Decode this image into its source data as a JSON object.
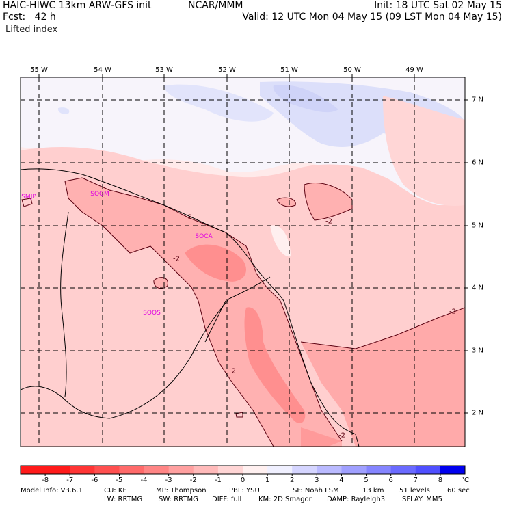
{
  "header": {
    "model_title": "HAIC-HIWC 13km ARW-GFS init",
    "agency": "NCAR/MMM",
    "init": "Init: 18 UTC Sat 02 May 15",
    "fcst": "Fcst:   42 h",
    "valid": "Valid: 12 UTC Mon 04 May 15 (09 LST Mon 04 May 15)",
    "field": "Lifted index"
  },
  "axes": {
    "lon_labels": [
      "55 W",
      "54 W",
      "53 W",
      "52 W",
      "51 W",
      "50 W",
      "49 W"
    ],
    "lat_labels": [
      "7 N",
      "6 N",
      "5 N",
      "4 N",
      "3 N",
      "2 N"
    ]
  },
  "stations": [
    "SMJP",
    "SOGM",
    "SOCA",
    "SOOS"
  ],
  "contour_labels": [
    "-2",
    "-2",
    "-2",
    "-2",
    "-2",
    "-2"
  ],
  "colorbar": {
    "labels": [
      "-8",
      "-7",
      "-6",
      "-5",
      "-4",
      "-3",
      "-2",
      "-1",
      "0",
      "1",
      "2",
      "3",
      "4",
      "5",
      "6",
      "7",
      "8"
    ],
    "unit": "°C",
    "colors": [
      "#ff1a1a",
      "#ff3535",
      "#ff4f4f",
      "#ff6a6a",
      "#ff8585",
      "#ffa0a0",
      "#ffbaba",
      "#ffd5d5",
      "#fff0f0",
      "#f0f0ff",
      "#d5d5ff",
      "#babaff",
      "#a0a0ff",
      "#8585ff",
      "#6a6aff",
      "#4f4fff",
      "#0000ee"
    ]
  },
  "footer": {
    "line1": [
      "Model Info: V3.6.1",
      "CU: KF",
      "MP: Thompson",
      "PBL: YSU",
      "SF: Noah LSM",
      "13 km",
      "51 levels",
      "60 sec"
    ],
    "line2": [
      "LW: RRTMG",
      "SW: RRTMG",
      "DIFF: full",
      "KM: 2D Smagor",
      "DAMP: Rayleigh3",
      "SFLAY: MM5"
    ]
  }
}
